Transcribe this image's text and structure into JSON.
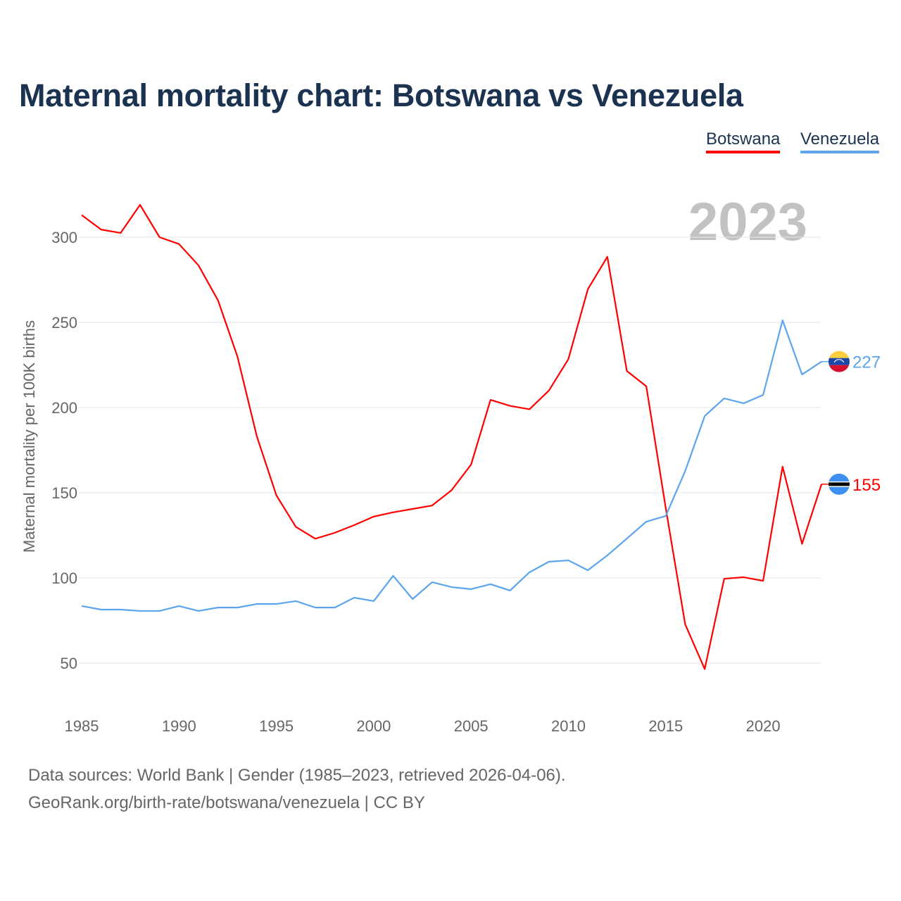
{
  "title": "Maternal mortality chart: Botswana vs Venezuela",
  "year_label": "2023",
  "footer": {
    "line1": "Data sources: World Bank | Gender (1985–2023, retrieved 2026-04-06).",
    "line2": "GeoRank.org/birth-rate/botswana/venezuela | CC BY"
  },
  "chart_data": {
    "type": "line",
    "title": "Maternal mortality chart: Botswana vs Venezuela",
    "xlabel": "",
    "ylabel": "Maternal mortality per 100K births",
    "xlim": [
      1985,
      2023
    ],
    "ylim": [
      25,
      320
    ],
    "grid": true,
    "legend_placement": "top-right",
    "x_ticks": [
      "1985",
      "1990",
      "1995",
      "2000",
      "2005",
      "2010",
      "2015",
      "2020"
    ],
    "y_ticks": [
      "50",
      "100",
      "150",
      "200",
      "250",
      "300"
    ],
    "x": [
      1985,
      1986,
      1987,
      1988,
      1989,
      1990,
      1991,
      1992,
      1993,
      1994,
      1995,
      1996,
      1997,
      1998,
      1999,
      2000,
      2001,
      2002,
      2003,
      2004,
      2005,
      2006,
      2007,
      2008,
      2009,
      2010,
      2011,
      2012,
      2013,
      2014,
      2015,
      2016,
      2017,
      2018,
      2019,
      2020,
      2021,
      2022,
      2023
    ],
    "series": [
      {
        "name": "Botswana",
        "color": "#ff0000",
        "end_label": "155",
        "flag": "botswana-flag",
        "values": [
          313,
          304.5,
          302.5,
          319,
          300,
          296,
          283.5,
          263,
          230,
          183,
          148.5,
          130,
          123,
          126.5,
          131,
          136,
          138.5,
          140.5,
          142.5,
          151.5,
          166.5,
          204.5,
          201,
          199,
          210,
          228.5,
          269.5,
          288.5,
          221.5,
          212.5,
          141,
          72.7,
          46.5,
          99.5,
          100.4,
          98.3,
          165.3,
          120,
          155
        ]
      },
      {
        "name": "Venezuela",
        "color": "#5aa5ee",
        "end_label": "227",
        "flag": "venezuela-flag",
        "values": [
          83.5,
          81.4,
          81.4,
          80.6,
          80.6,
          83.5,
          80.6,
          82.6,
          82.6,
          84.7,
          84.7,
          86.4,
          82.6,
          82.6,
          88.4,
          86.4,
          101.2,
          87.6,
          97.5,
          94.6,
          93.4,
          96.3,
          92.6,
          103.3,
          109.5,
          110.3,
          104.5,
          113.2,
          123.1,
          133,
          136.4,
          162.8,
          195,
          205.4,
          202.5,
          207.4,
          251.2,
          219.4,
          227
        ]
      }
    ]
  }
}
